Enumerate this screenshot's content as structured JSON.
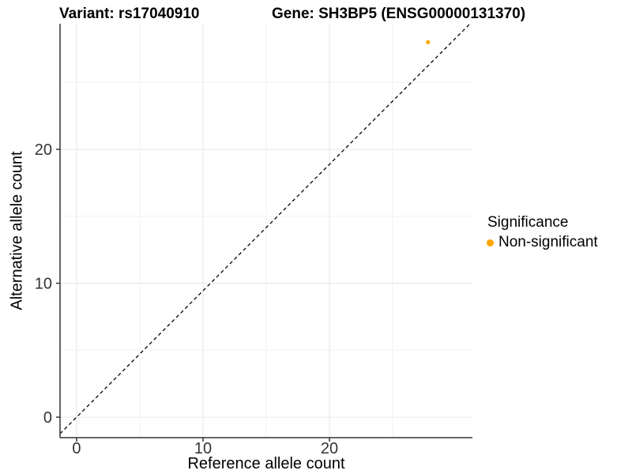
{
  "chart_data": {
    "type": "scatter",
    "titles": [
      "Variant: rs17040910",
      "Gene: SH3BP5 (ENSG00000131370)"
    ],
    "xlabel": "Reference allele count",
    "ylabel": "Alternative allele count",
    "xlim": [
      -1.31,
      31.31
    ],
    "ylim": [
      -1.53,
      29.38
    ],
    "x_ticks": [
      0,
      10,
      20
    ],
    "y_ticks": [
      0,
      10,
      20
    ],
    "x_minor_gridlines": [
      5,
      15,
      25
    ],
    "y_minor_gridlines": [
      5,
      15,
      25
    ],
    "grid": true,
    "legend": {
      "title": "Significance",
      "position": "right"
    },
    "series": [
      {
        "name": "Non-significant",
        "color": "#FFA500",
        "points": [
          {
            "x": 27.8,
            "y": 28.0
          }
        ]
      }
    ],
    "reference_line": {
      "type": "identity",
      "slope": 1,
      "intercept": 0,
      "style": "dashed",
      "color": "#000000"
    }
  }
}
